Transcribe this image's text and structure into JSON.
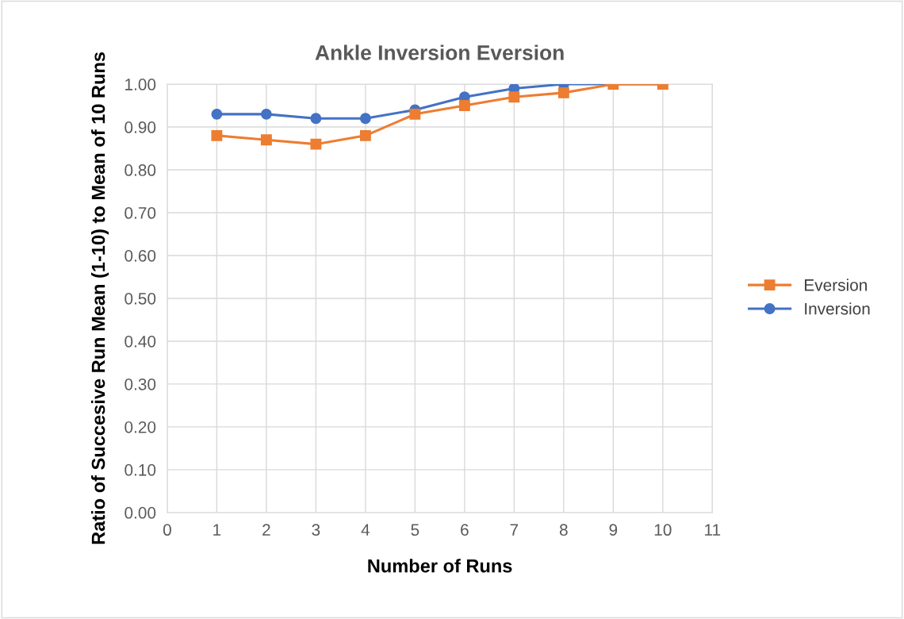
{
  "chart_data": {
    "type": "line",
    "title": "Ankle Inversion Eversion",
    "xlabel": "Number of Runs",
    "ylabel": "Ratio of Succesive Run Mean (1-10) to Mean of 10 Runs",
    "x": [
      1,
      2,
      3,
      4,
      5,
      6,
      7,
      8,
      9,
      10
    ],
    "series": [
      {
        "name": "Eversion",
        "color": "#ed7d31",
        "marker": "square",
        "values": [
          0.88,
          0.87,
          0.86,
          0.88,
          0.93,
          0.95,
          0.97,
          0.98,
          1.0,
          1.0
        ]
      },
      {
        "name": "Inversion",
        "color": "#4472c4",
        "marker": "circle",
        "values": [
          0.93,
          0.93,
          0.92,
          0.92,
          0.94,
          0.97,
          0.99,
          1.0,
          1.0,
          1.0
        ]
      }
    ],
    "xlim": [
      0,
      11
    ],
    "xticks": [
      0,
      1,
      2,
      3,
      4,
      5,
      6,
      7,
      8,
      9,
      10,
      11
    ],
    "ylim": [
      0,
      1
    ],
    "yticks": [
      {
        "value": 0,
        "label": "0.00"
      },
      {
        "value": 0.1,
        "label": "0.10"
      },
      {
        "value": 0.2,
        "label": "0.20"
      },
      {
        "value": 0.3,
        "label": "0.30"
      },
      {
        "value": 0.4,
        "label": "0.40"
      },
      {
        "value": 0.5,
        "label": "0.50"
      },
      {
        "value": 0.6,
        "label": "0.60"
      },
      {
        "value": 0.7,
        "label": "0.70"
      },
      {
        "value": 0.8,
        "label": "0.80"
      },
      {
        "value": 0.9,
        "label": "0.90"
      },
      {
        "value": 1.0,
        "label": "1.00"
      }
    ],
    "grid": true,
    "legend": "right",
    "line_style": "solid"
  }
}
